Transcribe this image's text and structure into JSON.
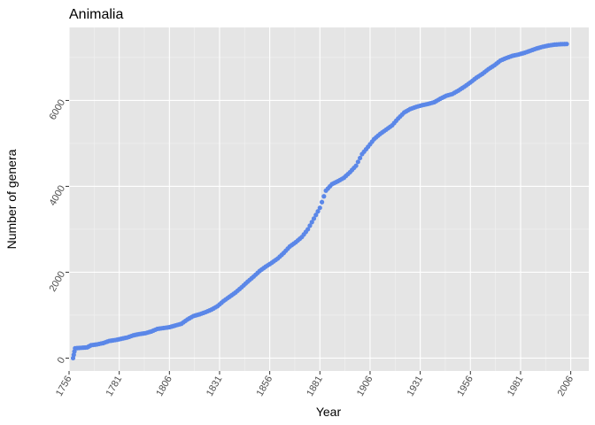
{
  "chart_data": {
    "type": "scatter",
    "title": "Animalia",
    "xlabel": "Year",
    "ylabel": "Number of genera",
    "xlim": [
      1756,
      2015
    ],
    "ylim": [
      -300,
      7700
    ],
    "x_ticks": [
      1756,
      1781,
      1806,
      1831,
      1856,
      1881,
      1906,
      1931,
      1956,
      1981,
      2006
    ],
    "x_tick_labels": [
      "1756",
      "1781",
      "1806",
      "1831",
      "1856",
      "1881",
      "1906",
      "1931",
      "1956",
      "1981",
      "2006"
    ],
    "y_ticks": [
      0,
      2000,
      4000,
      6000
    ],
    "y_tick_labels": [
      "0",
      "2000",
      "4000",
      "6000"
    ],
    "grid": true,
    "series": [
      {
        "name": "Animalia",
        "color": "#5b87e8",
        "points": [
          [
            1758,
            0
          ],
          [
            1759,
            230
          ],
          [
            1762,
            240
          ],
          [
            1765,
            250
          ],
          [
            1767,
            300
          ],
          [
            1770,
            320
          ],
          [
            1773,
            350
          ],
          [
            1776,
            400
          ],
          [
            1779,
            420
          ],
          [
            1782,
            450
          ],
          [
            1785,
            480
          ],
          [
            1788,
            530
          ],
          [
            1791,
            560
          ],
          [
            1794,
            580
          ],
          [
            1797,
            620
          ],
          [
            1800,
            680
          ],
          [
            1803,
            700
          ],
          [
            1806,
            720
          ],
          [
            1809,
            760
          ],
          [
            1812,
            800
          ],
          [
            1815,
            900
          ],
          [
            1818,
            980
          ],
          [
            1821,
            1020
          ],
          [
            1824,
            1070
          ],
          [
            1827,
            1130
          ],
          [
            1830,
            1210
          ],
          [
            1833,
            1330
          ],
          [
            1836,
            1430
          ],
          [
            1839,
            1530
          ],
          [
            1842,
            1650
          ],
          [
            1845,
            1780
          ],
          [
            1848,
            1900
          ],
          [
            1851,
            2030
          ],
          [
            1854,
            2130
          ],
          [
            1857,
            2220
          ],
          [
            1860,
            2320
          ],
          [
            1863,
            2450
          ],
          [
            1866,
            2600
          ],
          [
            1869,
            2700
          ],
          [
            1872,
            2820
          ],
          [
            1875,
            3000
          ],
          [
            1878,
            3250
          ],
          [
            1881,
            3500
          ],
          [
            1884,
            3900
          ],
          [
            1887,
            4050
          ],
          [
            1890,
            4120
          ],
          [
            1893,
            4200
          ],
          [
            1896,
            4330
          ],
          [
            1899,
            4480
          ],
          [
            1902,
            4750
          ],
          [
            1905,
            4920
          ],
          [
            1908,
            5100
          ],
          [
            1911,
            5220
          ],
          [
            1914,
            5320
          ],
          [
            1917,
            5420
          ],
          [
            1920,
            5580
          ],
          [
            1923,
            5720
          ],
          [
            1926,
            5800
          ],
          [
            1929,
            5850
          ],
          [
            1932,
            5890
          ],
          [
            1935,
            5920
          ],
          [
            1938,
            5960
          ],
          [
            1941,
            6040
          ],
          [
            1944,
            6110
          ],
          [
            1947,
            6150
          ],
          [
            1950,
            6230
          ],
          [
            1953,
            6320
          ],
          [
            1956,
            6420
          ],
          [
            1959,
            6530
          ],
          [
            1962,
            6620
          ],
          [
            1965,
            6730
          ],
          [
            1968,
            6820
          ],
          [
            1971,
            6930
          ],
          [
            1974,
            6990
          ],
          [
            1977,
            7040
          ],
          [
            1980,
            7070
          ],
          [
            1983,
            7110
          ],
          [
            1986,
            7160
          ],
          [
            1989,
            7210
          ],
          [
            1992,
            7250
          ],
          [
            1995,
            7280
          ],
          [
            1998,
            7300
          ],
          [
            2001,
            7310
          ],
          [
            2004,
            7315
          ]
        ]
      }
    ]
  }
}
